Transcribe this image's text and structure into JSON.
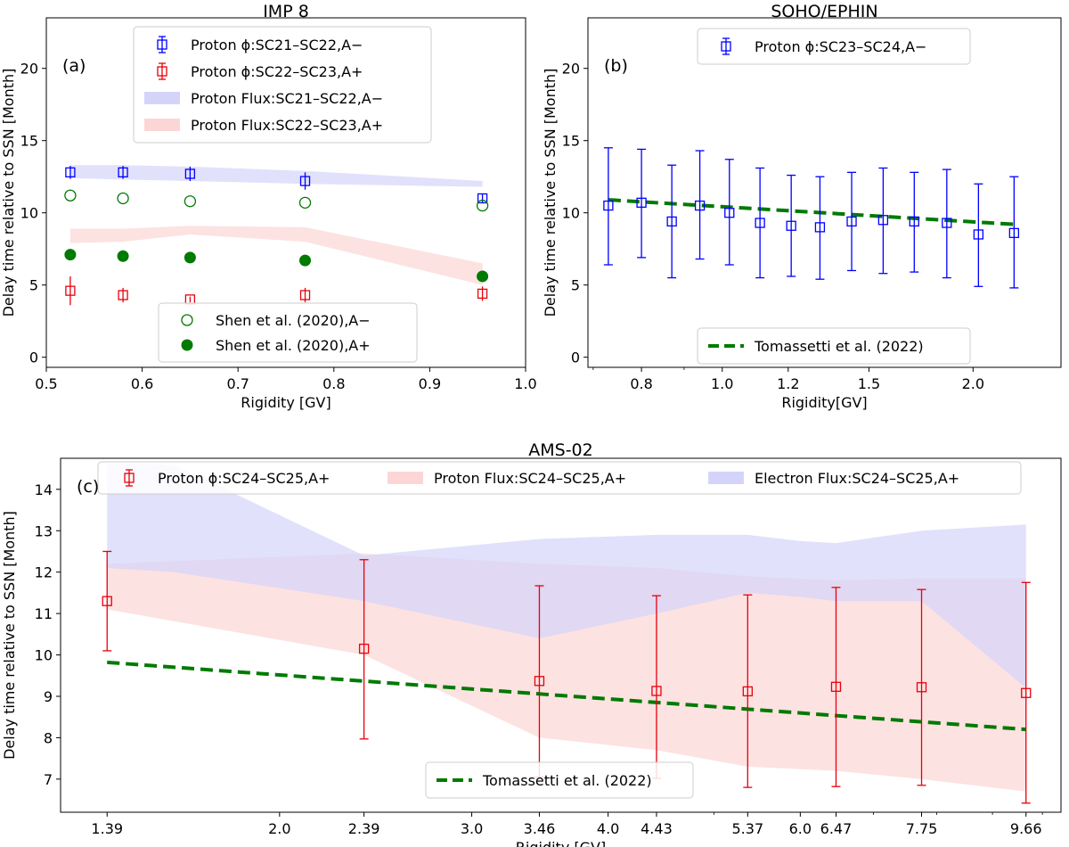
{
  "colors": {
    "blue": "#0000ff",
    "red": "#e8000b",
    "green": "#007a00",
    "blue_band": "#d4d4fb",
    "red_band": "#fcd6d6",
    "purple_overlap": "#d9c6e9"
  },
  "chart_data": [
    {
      "panel": "(a)",
      "type": "scatter",
      "title": "IMP 8",
      "xlabel": "Rigidity [GV]",
      "ylabel": "Delay time relative to SSN [Month]",
      "xlim": [
        0.5,
        1.0
      ],
      "ylim": [
        -0.7,
        23.5
      ],
      "xticks": [
        "0.5",
        "0.6",
        "0.7",
        "0.8",
        "0.9",
        "1.0"
      ],
      "yticks": [
        "0",
        "5",
        "10",
        "15",
        "20"
      ],
      "legend_upper": "top-center",
      "legend_lower": "bottom-center",
      "series": [
        {
          "name": "Proton ϕ:SC21–SC22,A−",
          "kind": "errorbar",
          "marker": "open-square",
          "color": "blue",
          "x": [
            0.525,
            0.58,
            0.65,
            0.77,
            0.955
          ],
          "y": [
            12.8,
            12.8,
            12.7,
            12.2,
            11.0
          ],
          "err": [
            0.45,
            0.45,
            0.5,
            0.6,
            0.3
          ]
        },
        {
          "name": "Proton ϕ:SC22–SC23,A+",
          "kind": "errorbar",
          "marker": "open-square",
          "color": "red",
          "x": [
            0.525,
            0.58,
            0.65,
            0.77,
            0.955
          ],
          "y": [
            4.6,
            4.3,
            4.0,
            4.3,
            4.4
          ],
          "err": [
            1.0,
            0.5,
            0.2,
            0.5,
            0.5
          ]
        },
        {
          "name": "Proton Flux:SC21–SC22,A−",
          "kind": "band",
          "color": "blue_band",
          "x": [
            0.525,
            0.58,
            0.65,
            0.77,
            0.955
          ],
          "lo": [
            12.4,
            12.3,
            12.2,
            12.0,
            11.8
          ],
          "hi": [
            13.3,
            13.3,
            13.2,
            12.9,
            12.2
          ]
        },
        {
          "name": "Proton Flux:SC22–SC23,A+",
          "kind": "band",
          "color": "red_band",
          "x": [
            0.525,
            0.58,
            0.65,
            0.77,
            0.955
          ],
          "lo": [
            7.9,
            8.0,
            8.5,
            8.0,
            5.0
          ],
          "hi": [
            8.9,
            8.9,
            9.1,
            9.0,
            6.5
          ]
        },
        {
          "name": "Shen et al. (2020),A−",
          "kind": "marker",
          "marker": "open-circle",
          "color": "green",
          "x": [
            0.525,
            0.58,
            0.65,
            0.77,
            0.955
          ],
          "y": [
            11.2,
            11.0,
            10.8,
            10.7,
            10.5
          ]
        },
        {
          "name": "Shen et al. (2020),A+",
          "kind": "marker",
          "marker": "filled-circle",
          "color": "green",
          "x": [
            0.525,
            0.58,
            0.65,
            0.77,
            0.955
          ],
          "y": [
            7.1,
            7.0,
            6.9,
            6.7,
            5.6
          ]
        }
      ]
    },
    {
      "panel": "(b)",
      "type": "scatter",
      "title": "SOHO/EPHIN",
      "xlabel": "Rigidity[GV]",
      "ylabel": "Delay time relative to SSN [Month]",
      "xscale": "log",
      "xlim": [
        0.69,
        2.55
      ],
      "ylim": [
        -0.7,
        23.5
      ],
      "xticks": [
        "0.8",
        "1.0",
        "1.2",
        "1.5",
        "2.0"
      ],
      "yticks": [
        "0",
        "5",
        "10",
        "15",
        "20"
      ],
      "legend_upper": "top-center",
      "legend_lower": "bottom-center",
      "series": [
        {
          "name": "Proton ϕ:SC23–SC24,A−",
          "kind": "errorbar",
          "marker": "open-square",
          "color": "blue",
          "x": [
            0.73,
            0.8,
            0.87,
            0.94,
            1.02,
            1.11,
            1.21,
            1.31,
            1.43,
            1.56,
            1.7,
            1.86,
            2.03,
            2.24
          ],
          "y": [
            10.5,
            10.7,
            9.4,
            10.5,
            10.0,
            9.3,
            9.1,
            9.0,
            9.4,
            9.5,
            9.4,
            9.3,
            8.5,
            8.6
          ],
          "lo": [
            6.4,
            6.9,
            5.5,
            6.8,
            6.4,
            5.5,
            5.6,
            5.4,
            6.0,
            5.8,
            5.9,
            5.5,
            4.9,
            4.8
          ],
          "hi": [
            14.5,
            14.4,
            13.3,
            14.3,
            13.7,
            13.1,
            12.6,
            12.5,
            12.8,
            13.1,
            12.8,
            13.0,
            12.0,
            12.5
          ]
        },
        {
          "name": "Tomassetti et al. (2022)",
          "kind": "line",
          "style": "dashed",
          "color": "green",
          "x": [
            0.73,
            2.24
          ],
          "y": [
            10.9,
            9.2
          ]
        }
      ]
    },
    {
      "panel": "(c)",
      "type": "scatter",
      "title": "AMS-02",
      "xlabel": "Rigidity [GV]",
      "ylabel": "Delay time relative to SSN [Month]",
      "xscale": "log",
      "xlim": [
        1.26,
        10.4
      ],
      "ylim": [
        6.2,
        14.75
      ],
      "xticks": [
        "1.39",
        "2.0",
        "2.39",
        "3.0",
        "3.46",
        "4.0",
        "4.43",
        "5.37",
        "6.0",
        "6.47",
        "7.75",
        "9.66"
      ],
      "yticks": [
        "7",
        "8",
        "9",
        "10",
        "11",
        "12",
        "13",
        "14"
      ],
      "legend_upper": "top",
      "legend_lower": "bottom-center",
      "series": [
        {
          "name": "Proton ϕ:SC24–SC25,A+",
          "kind": "errorbar",
          "marker": "open-square",
          "color": "red",
          "x": [
            1.39,
            2.39,
            3.46,
            4.43,
            5.37,
            6.47,
            7.75,
            9.66
          ],
          "y": [
            11.3,
            10.15,
            9.37,
            9.13,
            9.12,
            9.23,
            9.22,
            9.08
          ],
          "lo": [
            10.1,
            7.97,
            7.05,
            7.02,
            6.8,
            6.82,
            6.85,
            6.42
          ],
          "hi": [
            12.5,
            12.3,
            11.67,
            11.43,
            11.45,
            11.63,
            11.58,
            11.75
          ]
        },
        {
          "name": "Proton Flux:SC24–SC25,A+",
          "kind": "band",
          "color": "red_band",
          "x": [
            1.39,
            2.39,
            3.46,
            4.43,
            5.37,
            6.47,
            7.75,
            9.66
          ],
          "lo": [
            11.1,
            10.0,
            8.0,
            7.7,
            7.3,
            7.2,
            7.0,
            6.7
          ],
          "hi": [
            12.2,
            12.45,
            12.2,
            12.1,
            11.9,
            11.8,
            11.85,
            11.85
          ]
        },
        {
          "name": "Electron Flux:SC24–SC25,A+",
          "kind": "band",
          "color": "blue_band",
          "x": [
            1.39,
            1.6,
            2.39,
            3.46,
            4.43,
            5.37,
            6.0,
            6.47,
            7.75,
            9.66
          ],
          "lo": [
            12.1,
            12.0,
            11.3,
            10.4,
            11.0,
            11.5,
            11.4,
            11.3,
            11.3,
            9.2
          ],
          "hi": [
            14.6,
            14.6,
            12.4,
            12.8,
            12.9,
            12.9,
            12.75,
            12.7,
            13.0,
            13.15
          ]
        },
        {
          "name": "Tomassetti et al. (2022)",
          "kind": "line",
          "style": "dashed",
          "color": "green",
          "x": [
            1.39,
            9.66
          ],
          "y": [
            9.82,
            8.2
          ]
        }
      ]
    }
  ]
}
